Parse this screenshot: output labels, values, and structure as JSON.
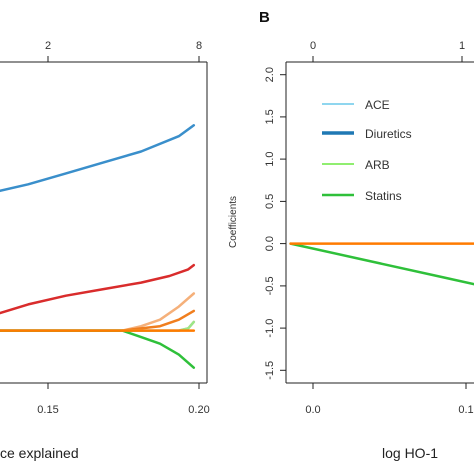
{
  "chart_data": [
    {
      "type": "line",
      "panel": "A",
      "panel_label": "",
      "xlabel": "ce explained",
      "top_ticks": [
        "2",
        "8"
      ],
      "x_ticks": [
        "0.15",
        "0.20"
      ],
      "xlim": [
        0.095,
        0.205
      ],
      "ylim": [
        -0.62,
        0.85
      ],
      "series": [
        {
          "color": "#3a8fcb",
          "x": [
            0.095,
            0.11,
            0.13,
            0.15,
            0.17,
            0.19,
            0.198
          ],
          "y": [
            0.26,
            0.29,
            0.34,
            0.39,
            0.44,
            0.51,
            0.56
          ]
        },
        {
          "color": "#d92c2c",
          "x": [
            0.095,
            0.11,
            0.13,
            0.15,
            0.17,
            0.185,
            0.195,
            0.198
          ],
          "y": [
            -0.3,
            -0.26,
            -0.22,
            -0.19,
            -0.16,
            -0.13,
            -0.1,
            -0.08
          ]
        },
        {
          "color": "#f5b07a",
          "x": [
            0.095,
            0.16,
            0.17,
            0.18,
            0.19,
            0.198
          ],
          "y": [
            -0.38,
            -0.38,
            -0.36,
            -0.33,
            -0.27,
            -0.21
          ]
        },
        {
          "color": "#f07e1e",
          "x": [
            0.095,
            0.16,
            0.17,
            0.18,
            0.19,
            0.198
          ],
          "y": [
            -0.38,
            -0.38,
            -0.37,
            -0.36,
            -0.33,
            -0.29
          ]
        },
        {
          "color": "#f08fb8",
          "x": [
            0.095,
            0.17,
            0.18,
            0.19,
            0.195,
            0.198
          ],
          "y": [
            -0.38,
            -0.38,
            -0.38,
            -0.38,
            -0.37,
            -0.34
          ]
        },
        {
          "color": "#9be887",
          "x": [
            0.095,
            0.18,
            0.19,
            0.195,
            0.198
          ],
          "y": [
            -0.38,
            -0.38,
            -0.38,
            -0.37,
            -0.34
          ]
        },
        {
          "color": "#2fc03a",
          "x": [
            0.095,
            0.16,
            0.17,
            0.18,
            0.19,
            0.198
          ],
          "y": [
            -0.38,
            -0.38,
            -0.41,
            -0.44,
            -0.49,
            -0.55
          ]
        },
        {
          "color": "#ff7b00",
          "x": [
            0.095,
            0.15,
            0.16,
            0.198
          ],
          "y": [
            -0.38,
            -0.38,
            -0.38,
            -0.38
          ]
        }
      ]
    },
    {
      "type": "line",
      "panel": "B",
      "panel_label": "B",
      "xlabel": "log HO-1",
      "ylabel": "Coefficients",
      "top_ticks": [
        "0",
        "1"
      ],
      "x_ticks": [
        "0.0",
        "0.1"
      ],
      "y_ticks": [
        "2.0",
        "1.5",
        "1.0",
        "0.5",
        "0.0",
        "-0.5",
        "-1.0",
        "-1.5"
      ],
      "xlim": [
        -0.003,
        0.12
      ],
      "ylim": [
        -1.65,
        2.15
      ],
      "legend": [
        "ACE",
        "Diuretics",
        "ARB",
        "Statins"
      ],
      "legend_colors": [
        "#8fd6ef",
        "#1f78b4",
        "#90ee70",
        "#2fc03a"
      ],
      "series": [
        {
          "name": "Statins",
          "color": "#2fc03a",
          "x": [
            0.0,
            0.05,
            0.1,
            0.12
          ],
          "y": [
            0.0,
            -0.2,
            -0.4,
            -0.48
          ]
        },
        {
          "color": "#ff7b00",
          "x": [
            0.0,
            0.12
          ],
          "y": [
            0.0,
            0.0
          ]
        }
      ]
    }
  ]
}
